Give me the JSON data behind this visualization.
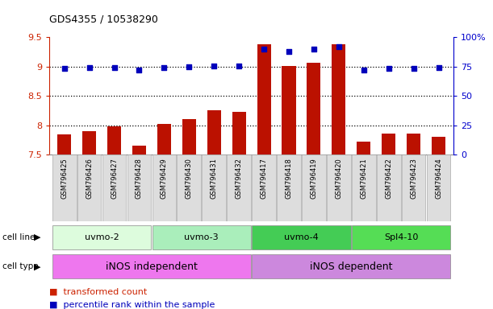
{
  "title": "GDS4355 / 10538290",
  "samples": [
    "GSM796425",
    "GSM796426",
    "GSM796427",
    "GSM796428",
    "GSM796429",
    "GSM796430",
    "GSM796431",
    "GSM796432",
    "GSM796417",
    "GSM796418",
    "GSM796419",
    "GSM796420",
    "GSM796421",
    "GSM796422",
    "GSM796423",
    "GSM796424"
  ],
  "transformed_count": [
    7.84,
    7.9,
    7.98,
    7.65,
    8.02,
    8.1,
    8.26,
    8.23,
    9.38,
    9.01,
    9.06,
    9.38,
    7.72,
    7.85,
    7.86,
    7.8
  ],
  "percentile_rank": [
    73,
    74,
    74,
    72,
    74,
    75,
    75.5,
    75.5,
    90,
    88,
    90,
    92,
    72,
    73,
    73,
    74
  ],
  "ylim_left": [
    7.5,
    9.5
  ],
  "ylim_right": [
    0,
    100
  ],
  "yticks_left": [
    7.5,
    8.0,
    8.5,
    9.0,
    9.5
  ],
  "yticks_right": [
    0,
    25,
    50,
    75,
    100
  ],
  "ytick_labels_left": [
    "7.5",
    "8",
    "8.5",
    "9",
    "9.5"
  ],
  "ytick_labels_right": [
    "0",
    "25",
    "50",
    "75",
    "100%"
  ],
  "grid_yticks": [
    8.0,
    8.5,
    9.0
  ],
  "cell_line_groups": [
    {
      "label": "uvmo-2",
      "start": 0,
      "end": 3,
      "color": "#ddfcdd"
    },
    {
      "label": "uvmo-3",
      "start": 4,
      "end": 7,
      "color": "#aaeebb"
    },
    {
      "label": "uvmo-4",
      "start": 8,
      "end": 11,
      "color": "#44cc55"
    },
    {
      "label": "Spl4-10",
      "start": 12,
      "end": 15,
      "color": "#55dd55"
    }
  ],
  "cell_type_groups": [
    {
      "label": "iNOS independent",
      "start": 0,
      "end": 7,
      "color": "#ee77ee"
    },
    {
      "label": "iNOS dependent",
      "start": 8,
      "end": 15,
      "color": "#cc88dd"
    }
  ],
  "bar_color": "#bb1100",
  "dot_color": "#0000bb",
  "grid_color": "#000000",
  "axis_left_color": "#cc2200",
  "axis_right_color": "#0000cc",
  "sample_box_color": "#dddddd",
  "background_color": "#ffffff",
  "legend_items": [
    {
      "label": "transformed count",
      "color": "#cc2200"
    },
    {
      "label": "percentile rank within the sample",
      "color": "#0000bb"
    }
  ]
}
